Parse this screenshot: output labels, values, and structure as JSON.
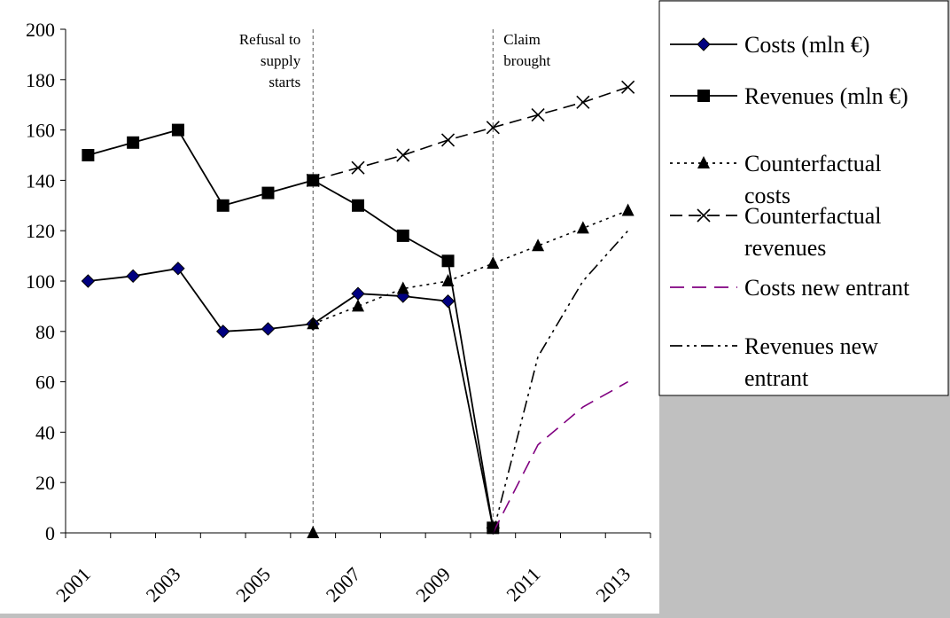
{
  "chart_data": {
    "type": "line",
    "x_categories": [
      "2001",
      "2002",
      "2003",
      "2004",
      "2005",
      "2006",
      "2007",
      "2008",
      "2009",
      "2010",
      "2011",
      "2012",
      "2013"
    ],
    "x_tick_labels": [
      "2001",
      "2003",
      "2005",
      "2007",
      "2009",
      "2011",
      "2013"
    ],
    "ylim": [
      0,
      200
    ],
    "y_ticks": [
      0,
      20,
      40,
      60,
      80,
      100,
      120,
      140,
      160,
      180,
      200
    ],
    "grid": false,
    "legend_position": "right",
    "annotations": [
      {
        "text": [
          "Refusal to",
          "supply",
          "starts"
        ],
        "at_x": "2006"
      },
      {
        "text": [
          "Claim",
          "brought"
        ],
        "at_x": "2010"
      }
    ],
    "series": [
      {
        "name": "Costs (mln €)",
        "style": "solid",
        "marker": "diamond",
        "color": "#000080",
        "x": [
          "2001",
          "2002",
          "2003",
          "2004",
          "2005",
          "2006",
          "2007",
          "2008",
          "2009",
          "2010"
        ],
        "values": [
          100,
          102,
          105,
          80,
          81,
          83,
          95,
          94,
          92,
          2
        ]
      },
      {
        "name": "Revenues (mln €)",
        "style": "solid",
        "marker": "square",
        "color": "#000000",
        "x": [
          "2001",
          "2002",
          "2003",
          "2004",
          "2005",
          "2006",
          "2007",
          "2008",
          "2009",
          "2010"
        ],
        "values": [
          150,
          155,
          160,
          130,
          135,
          140,
          130,
          118,
          108,
          2
        ]
      },
      {
        "name": "Counterfactual costs",
        "style": "dotted",
        "marker": "triangle",
        "color": "#000000",
        "x": [
          "2006",
          "2007",
          "2008",
          "2009",
          "2010",
          "2011",
          "2012",
          "2013"
        ],
        "values": [
          83,
          90,
          97,
          100,
          107,
          114,
          121,
          128
        ]
      },
      {
        "name": "Counterfactual revenues",
        "style": "longdash",
        "marker": "x",
        "color": "#000000",
        "x": [
          "2006",
          "2007",
          "2008",
          "2009",
          "2010",
          "2011",
          "2012",
          "2013"
        ],
        "values": [
          140,
          145,
          150,
          156,
          161,
          166,
          171,
          177
        ]
      },
      {
        "name": "Costs new entrant",
        "style": "dashed",
        "marker": "none",
        "color": "#800080",
        "x": [
          "2010",
          "2011",
          "2012",
          "2013"
        ],
        "values": [
          0,
          35,
          50,
          60
        ]
      },
      {
        "name": "Revenues new entrant",
        "style": "dashdotdot",
        "marker": "none",
        "color": "#000000",
        "x": [
          "2010",
          "2011",
          "2012",
          "2013"
        ],
        "values": [
          0,
          70,
          100,
          120
        ]
      }
    ],
    "extra_points": [
      {
        "series": "Counterfactual costs",
        "x": "2006",
        "value": 0
      }
    ]
  },
  "legend_entries": [
    [
      "Costs (mln €)"
    ],
    [
      "Revenues (mln €)"
    ],
    [
      "Counterfactual",
      "costs"
    ],
    [
      "Counterfactual",
      "revenues"
    ],
    [
      "Costs new entrant"
    ],
    [
      "Revenues new",
      "entrant"
    ]
  ]
}
